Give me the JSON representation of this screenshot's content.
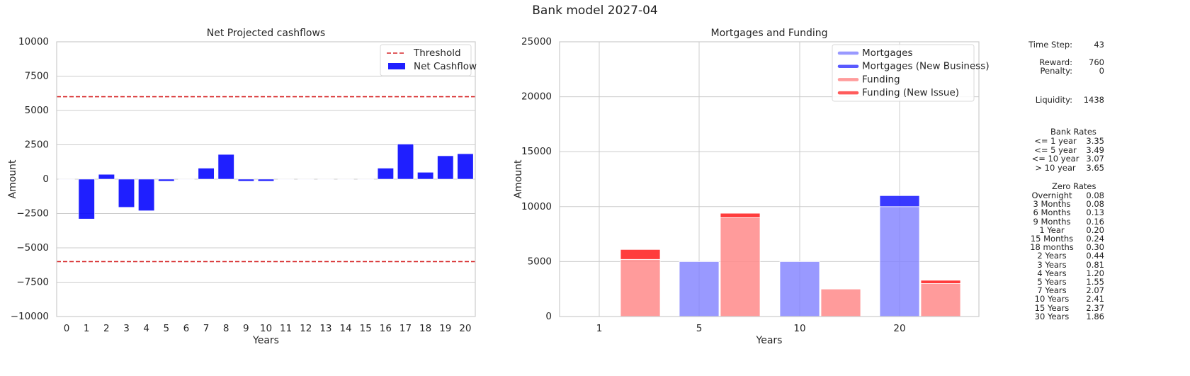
{
  "suptitle": "Bank model 2027-04",
  "chart_data": [
    {
      "type": "bar",
      "title": "Net Projected cashflows",
      "xlabel": "Years",
      "ylabel": "Amount",
      "ylim": [
        -10000,
        10000
      ],
      "yticks": [
        -10000,
        -7500,
        -5000,
        -2500,
        0,
        2500,
        5000,
        7500,
        10000
      ],
      "ytick_labels": [
        "−10000",
        "−7500",
        "−5000",
        "−2500",
        "0",
        "2500",
        "5000",
        "7500",
        "10000"
      ],
      "categories": [
        "0",
        "1",
        "2",
        "3",
        "4",
        "5",
        "6",
        "7",
        "8",
        "9",
        "10",
        "11",
        "12",
        "13",
        "14",
        "15",
        "16",
        "17",
        "18",
        "19",
        "20"
      ],
      "series": [
        {
          "name": "Net Cashflow",
          "color": "#0000ff",
          "values": [
            0,
            -2900,
            350,
            -2050,
            -2300,
            -150,
            0,
            800,
            1800,
            -150,
            -150,
            0,
            0,
            0,
            0,
            0,
            800,
            2550,
            500,
            1700,
            1850
          ]
        }
      ],
      "threshold": {
        "name": "Threshold",
        "values": [
          6000,
          -6000
        ],
        "color": "#d62728"
      },
      "legend": "top-right",
      "grid": "horizontal"
    },
    {
      "type": "bar",
      "title": "Mortgages and Funding",
      "xlabel": "Years",
      "ylabel": "Amount",
      "ylim": [
        0,
        25000
      ],
      "yticks": [
        0,
        5000,
        10000,
        15000,
        20000,
        25000
      ],
      "ytick_labels": [
        "0",
        "5000",
        "10000",
        "15000",
        "20000",
        "25000"
      ],
      "categories": [
        "1",
        "5",
        "10",
        "20"
      ],
      "series": [
        {
          "name": "Mortgages",
          "color": "#8080ff",
          "values": [
            0,
            5000,
            5000,
            10000
          ]
        },
        {
          "name": "Mortgages (New Business)",
          "color": "#2323ff",
          "values": [
            0,
            0,
            0,
            1000
          ]
        },
        {
          "name": "Funding",
          "color": "#ff8a8a",
          "values": [
            5200,
            9000,
            2500,
            3000
          ]
        },
        {
          "name": "Funding (New Issue)",
          "color": "#ff3232",
          "values": [
            900,
            400,
            0,
            300
          ]
        }
      ],
      "legend": "top-right",
      "grid": "both"
    }
  ],
  "side_panel": {
    "time_step": {
      "label": "Time Step:",
      "value": "43"
    },
    "reward": {
      "label": "Reward:",
      "value": "760"
    },
    "penalty": {
      "label": "Penalty:",
      "value": "0"
    },
    "liquidity": {
      "label": "Liquidity:",
      "value": "1438"
    },
    "bank_rates": {
      "title": "Bank Rates",
      "rows": [
        {
          "label": "<= 1 year",
          "value": "3.35"
        },
        {
          "label": "<= 5 year",
          "value": "3.49"
        },
        {
          "label": "<= 10 year",
          "value": "3.07"
        },
        {
          "label": "> 10 year",
          "value": "3.65"
        }
      ]
    },
    "zero_rates": {
      "title": "Zero Rates",
      "rows": [
        {
          "label": "Overnight",
          "value": "0.08"
        },
        {
          "label": "3 Months",
          "value": "0.08"
        },
        {
          "label": "6 Months",
          "value": "0.13"
        },
        {
          "label": "9 Months",
          "value": "0.16"
        },
        {
          "label": "1 Year",
          "value": "0.20"
        },
        {
          "label": "15 Months",
          "value": "0.24"
        },
        {
          "label": "18 months",
          "value": "0.30"
        },
        {
          "label": "2 Years",
          "value": "0.44"
        },
        {
          "label": "3 Years",
          "value": "0.81"
        },
        {
          "label": "4 Years",
          "value": "1.20"
        },
        {
          "label": "5 Years",
          "value": "1.55"
        },
        {
          "label": "7 Years",
          "value": "2.07"
        },
        {
          "label": "10 Years",
          "value": "2.41"
        },
        {
          "label": "15 Years",
          "value": "2.37"
        },
        {
          "label": "30 Years",
          "value": "1.86"
        }
      ]
    }
  }
}
